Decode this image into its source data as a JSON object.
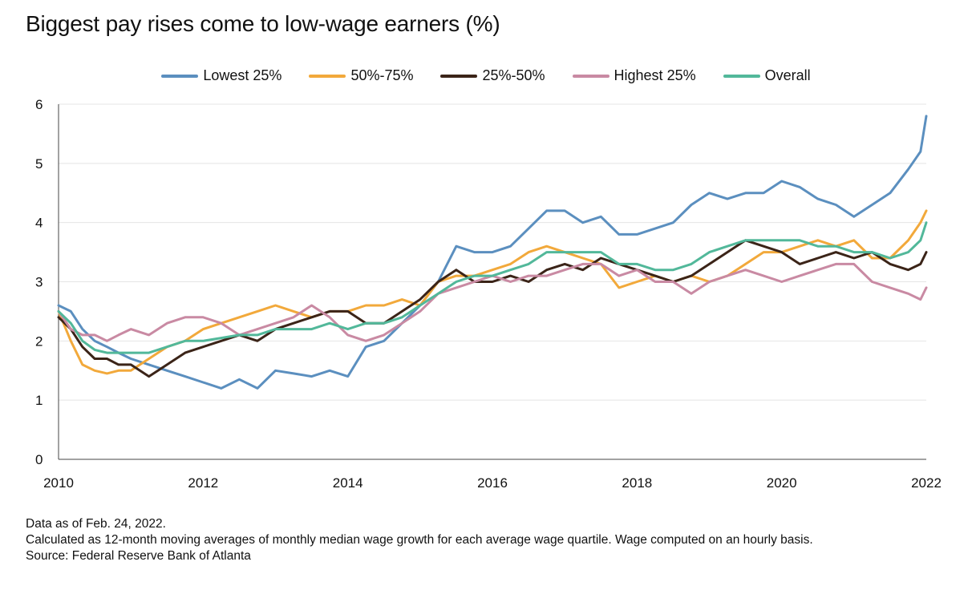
{
  "chart_data": {
    "type": "line",
    "title": "Biggest pay rises come to low-wage earners (%)",
    "xlabel": "",
    "ylabel": "",
    "xlim": [
      2010,
      2022
    ],
    "ylim": [
      0,
      6
    ],
    "y_ticks": [
      "0",
      "1",
      "2",
      "3",
      "4",
      "5",
      "6"
    ],
    "x_ticks": [
      "2010",
      "2012",
      "2014",
      "2016",
      "2018",
      "2020",
      "2022"
    ],
    "grid": true,
    "legend_position": "top-center",
    "series": [
      {
        "name": "Lowest 25%",
        "color": "#5b8fbf",
        "x": [
          2010.0,
          2010.17,
          2010.33,
          2010.5,
          2010.67,
          2010.83,
          2011.0,
          2011.25,
          2011.5,
          2011.75,
          2012.0,
          2012.25,
          2012.5,
          2012.75,
          2013.0,
          2013.25,
          2013.5,
          2013.75,
          2014.0,
          2014.25,
          2014.5,
          2014.75,
          2015.0,
          2015.25,
          2015.5,
          2015.75,
          2016.0,
          2016.25,
          2016.5,
          2016.75,
          2017.0,
          2017.25,
          2017.5,
          2017.75,
          2018.0,
          2018.25,
          2018.5,
          2018.75,
          2019.0,
          2019.25,
          2019.5,
          2019.75,
          2020.0,
          2020.25,
          2020.5,
          2020.75,
          2021.0,
          2021.25,
          2021.5,
          2021.75,
          2021.92,
          2022.0
        ],
        "values": [
          2.6,
          2.5,
          2.2,
          2.0,
          1.9,
          1.8,
          1.7,
          1.6,
          1.5,
          1.4,
          1.3,
          1.2,
          1.35,
          1.2,
          1.5,
          1.45,
          1.4,
          1.5,
          1.4,
          1.9,
          2.0,
          2.3,
          2.6,
          3.0,
          3.6,
          3.5,
          3.5,
          3.6,
          3.9,
          4.2,
          4.2,
          4.0,
          4.1,
          3.8,
          3.8,
          3.9,
          4.0,
          4.3,
          4.5,
          4.4,
          4.5,
          4.5,
          4.7,
          4.6,
          4.4,
          4.3,
          4.1,
          4.3,
          4.5,
          4.9,
          5.2,
          5.8
        ]
      },
      {
        "name": "50%-75%",
        "color": "#f2a93b",
        "x": [
          2010.0,
          2010.17,
          2010.33,
          2010.5,
          2010.67,
          2010.83,
          2011.0,
          2011.25,
          2011.5,
          2011.75,
          2012.0,
          2012.25,
          2012.5,
          2012.75,
          2013.0,
          2013.25,
          2013.5,
          2013.75,
          2014.0,
          2014.25,
          2014.5,
          2014.75,
          2015.0,
          2015.25,
          2015.5,
          2015.75,
          2016.0,
          2016.25,
          2016.5,
          2016.75,
          2017.0,
          2017.25,
          2017.5,
          2017.75,
          2018.0,
          2018.25,
          2018.5,
          2018.75,
          2019.0,
          2019.25,
          2019.5,
          2019.75,
          2020.0,
          2020.25,
          2020.5,
          2020.75,
          2021.0,
          2021.25,
          2021.5,
          2021.75,
          2021.92,
          2022.0
        ],
        "values": [
          2.5,
          2.0,
          1.6,
          1.5,
          1.45,
          1.5,
          1.5,
          1.7,
          1.9,
          2.0,
          2.2,
          2.3,
          2.4,
          2.5,
          2.6,
          2.5,
          2.4,
          2.5,
          2.5,
          2.6,
          2.6,
          2.7,
          2.6,
          3.0,
          3.1,
          3.1,
          3.2,
          3.3,
          3.5,
          3.6,
          3.5,
          3.4,
          3.3,
          2.9,
          3.0,
          3.1,
          3.0,
          3.1,
          3.0,
          3.1,
          3.3,
          3.5,
          3.5,
          3.6,
          3.7,
          3.6,
          3.7,
          3.4,
          3.4,
          3.7,
          4.0,
          4.2
        ]
      },
      {
        "name": "25%-50%",
        "color": "#3b2418",
        "x": [
          2010.0,
          2010.17,
          2010.33,
          2010.5,
          2010.67,
          2010.83,
          2011.0,
          2011.25,
          2011.5,
          2011.75,
          2012.0,
          2012.25,
          2012.5,
          2012.75,
          2013.0,
          2013.25,
          2013.5,
          2013.75,
          2014.0,
          2014.25,
          2014.5,
          2014.75,
          2015.0,
          2015.25,
          2015.5,
          2015.75,
          2016.0,
          2016.25,
          2016.5,
          2016.75,
          2017.0,
          2017.25,
          2017.5,
          2017.75,
          2018.0,
          2018.25,
          2018.5,
          2018.75,
          2019.0,
          2019.25,
          2019.5,
          2019.75,
          2020.0,
          2020.25,
          2020.5,
          2020.75,
          2021.0,
          2021.25,
          2021.5,
          2021.75,
          2021.92,
          2022.0
        ],
        "values": [
          2.4,
          2.2,
          1.9,
          1.7,
          1.7,
          1.6,
          1.6,
          1.4,
          1.6,
          1.8,
          1.9,
          2.0,
          2.1,
          2.0,
          2.2,
          2.3,
          2.4,
          2.5,
          2.5,
          2.3,
          2.3,
          2.5,
          2.7,
          3.0,
          3.2,
          3.0,
          3.0,
          3.1,
          3.0,
          3.2,
          3.3,
          3.2,
          3.4,
          3.3,
          3.2,
          3.1,
          3.0,
          3.1,
          3.3,
          3.5,
          3.7,
          3.6,
          3.5,
          3.3,
          3.4,
          3.5,
          3.4,
          3.5,
          3.3,
          3.2,
          3.3,
          3.5
        ]
      },
      {
        "name": "Highest 25%",
        "color": "#c98aa3",
        "x": [
          2010.0,
          2010.17,
          2010.33,
          2010.5,
          2010.67,
          2010.83,
          2011.0,
          2011.25,
          2011.5,
          2011.75,
          2012.0,
          2012.25,
          2012.5,
          2012.75,
          2013.0,
          2013.25,
          2013.5,
          2013.75,
          2014.0,
          2014.25,
          2014.5,
          2014.75,
          2015.0,
          2015.25,
          2015.5,
          2015.75,
          2016.0,
          2016.25,
          2016.5,
          2016.75,
          2017.0,
          2017.25,
          2017.5,
          2017.75,
          2018.0,
          2018.25,
          2018.5,
          2018.75,
          2019.0,
          2019.25,
          2019.5,
          2019.75,
          2020.0,
          2020.25,
          2020.5,
          2020.75,
          2021.0,
          2021.25,
          2021.5,
          2021.75,
          2021.92,
          2022.0
        ],
        "values": [
          2.5,
          2.2,
          2.1,
          2.1,
          2.0,
          2.1,
          2.2,
          2.1,
          2.3,
          2.4,
          2.4,
          2.3,
          2.1,
          2.2,
          2.3,
          2.4,
          2.6,
          2.4,
          2.1,
          2.0,
          2.1,
          2.3,
          2.5,
          2.8,
          2.9,
          3.0,
          3.1,
          3.0,
          3.1,
          3.1,
          3.2,
          3.3,
          3.3,
          3.1,
          3.2,
          3.0,
          3.0,
          2.8,
          3.0,
          3.1,
          3.2,
          3.1,
          3.0,
          3.1,
          3.2,
          3.3,
          3.3,
          3.0,
          2.9,
          2.8,
          2.7,
          2.9
        ]
      },
      {
        "name": "Overall",
        "color": "#52b89a",
        "x": [
          2010.0,
          2010.17,
          2010.33,
          2010.5,
          2010.67,
          2010.83,
          2011.0,
          2011.25,
          2011.5,
          2011.75,
          2012.0,
          2012.25,
          2012.5,
          2012.75,
          2013.0,
          2013.25,
          2013.5,
          2013.75,
          2014.0,
          2014.25,
          2014.5,
          2014.75,
          2015.0,
          2015.25,
          2015.5,
          2015.75,
          2016.0,
          2016.25,
          2016.5,
          2016.75,
          2017.0,
          2017.25,
          2017.5,
          2017.75,
          2018.0,
          2018.25,
          2018.5,
          2018.75,
          2019.0,
          2019.25,
          2019.5,
          2019.75,
          2020.0,
          2020.25,
          2020.5,
          2020.75,
          2021.0,
          2021.25,
          2021.5,
          2021.75,
          2021.92,
          2022.0
        ],
        "values": [
          2.5,
          2.3,
          2.0,
          1.85,
          1.8,
          1.8,
          1.8,
          1.8,
          1.9,
          2.0,
          2.0,
          2.05,
          2.1,
          2.1,
          2.2,
          2.2,
          2.2,
          2.3,
          2.2,
          2.3,
          2.3,
          2.4,
          2.6,
          2.8,
          3.0,
          3.1,
          3.1,
          3.2,
          3.3,
          3.5,
          3.5,
          3.5,
          3.5,
          3.3,
          3.3,
          3.2,
          3.2,
          3.3,
          3.5,
          3.6,
          3.7,
          3.7,
          3.7,
          3.7,
          3.6,
          3.6,
          3.5,
          3.5,
          3.4,
          3.5,
          3.7,
          4.0
        ]
      }
    ]
  },
  "notes": {
    "line1": "Data as of Feb. 24, 2022.",
    "line2": "Calculated as 12-month moving averages of monthly median wage growth for each average wage quartile. Wage computed on an hourly basis.",
    "line3": "Source: Federal Reserve Bank of Atlanta"
  }
}
